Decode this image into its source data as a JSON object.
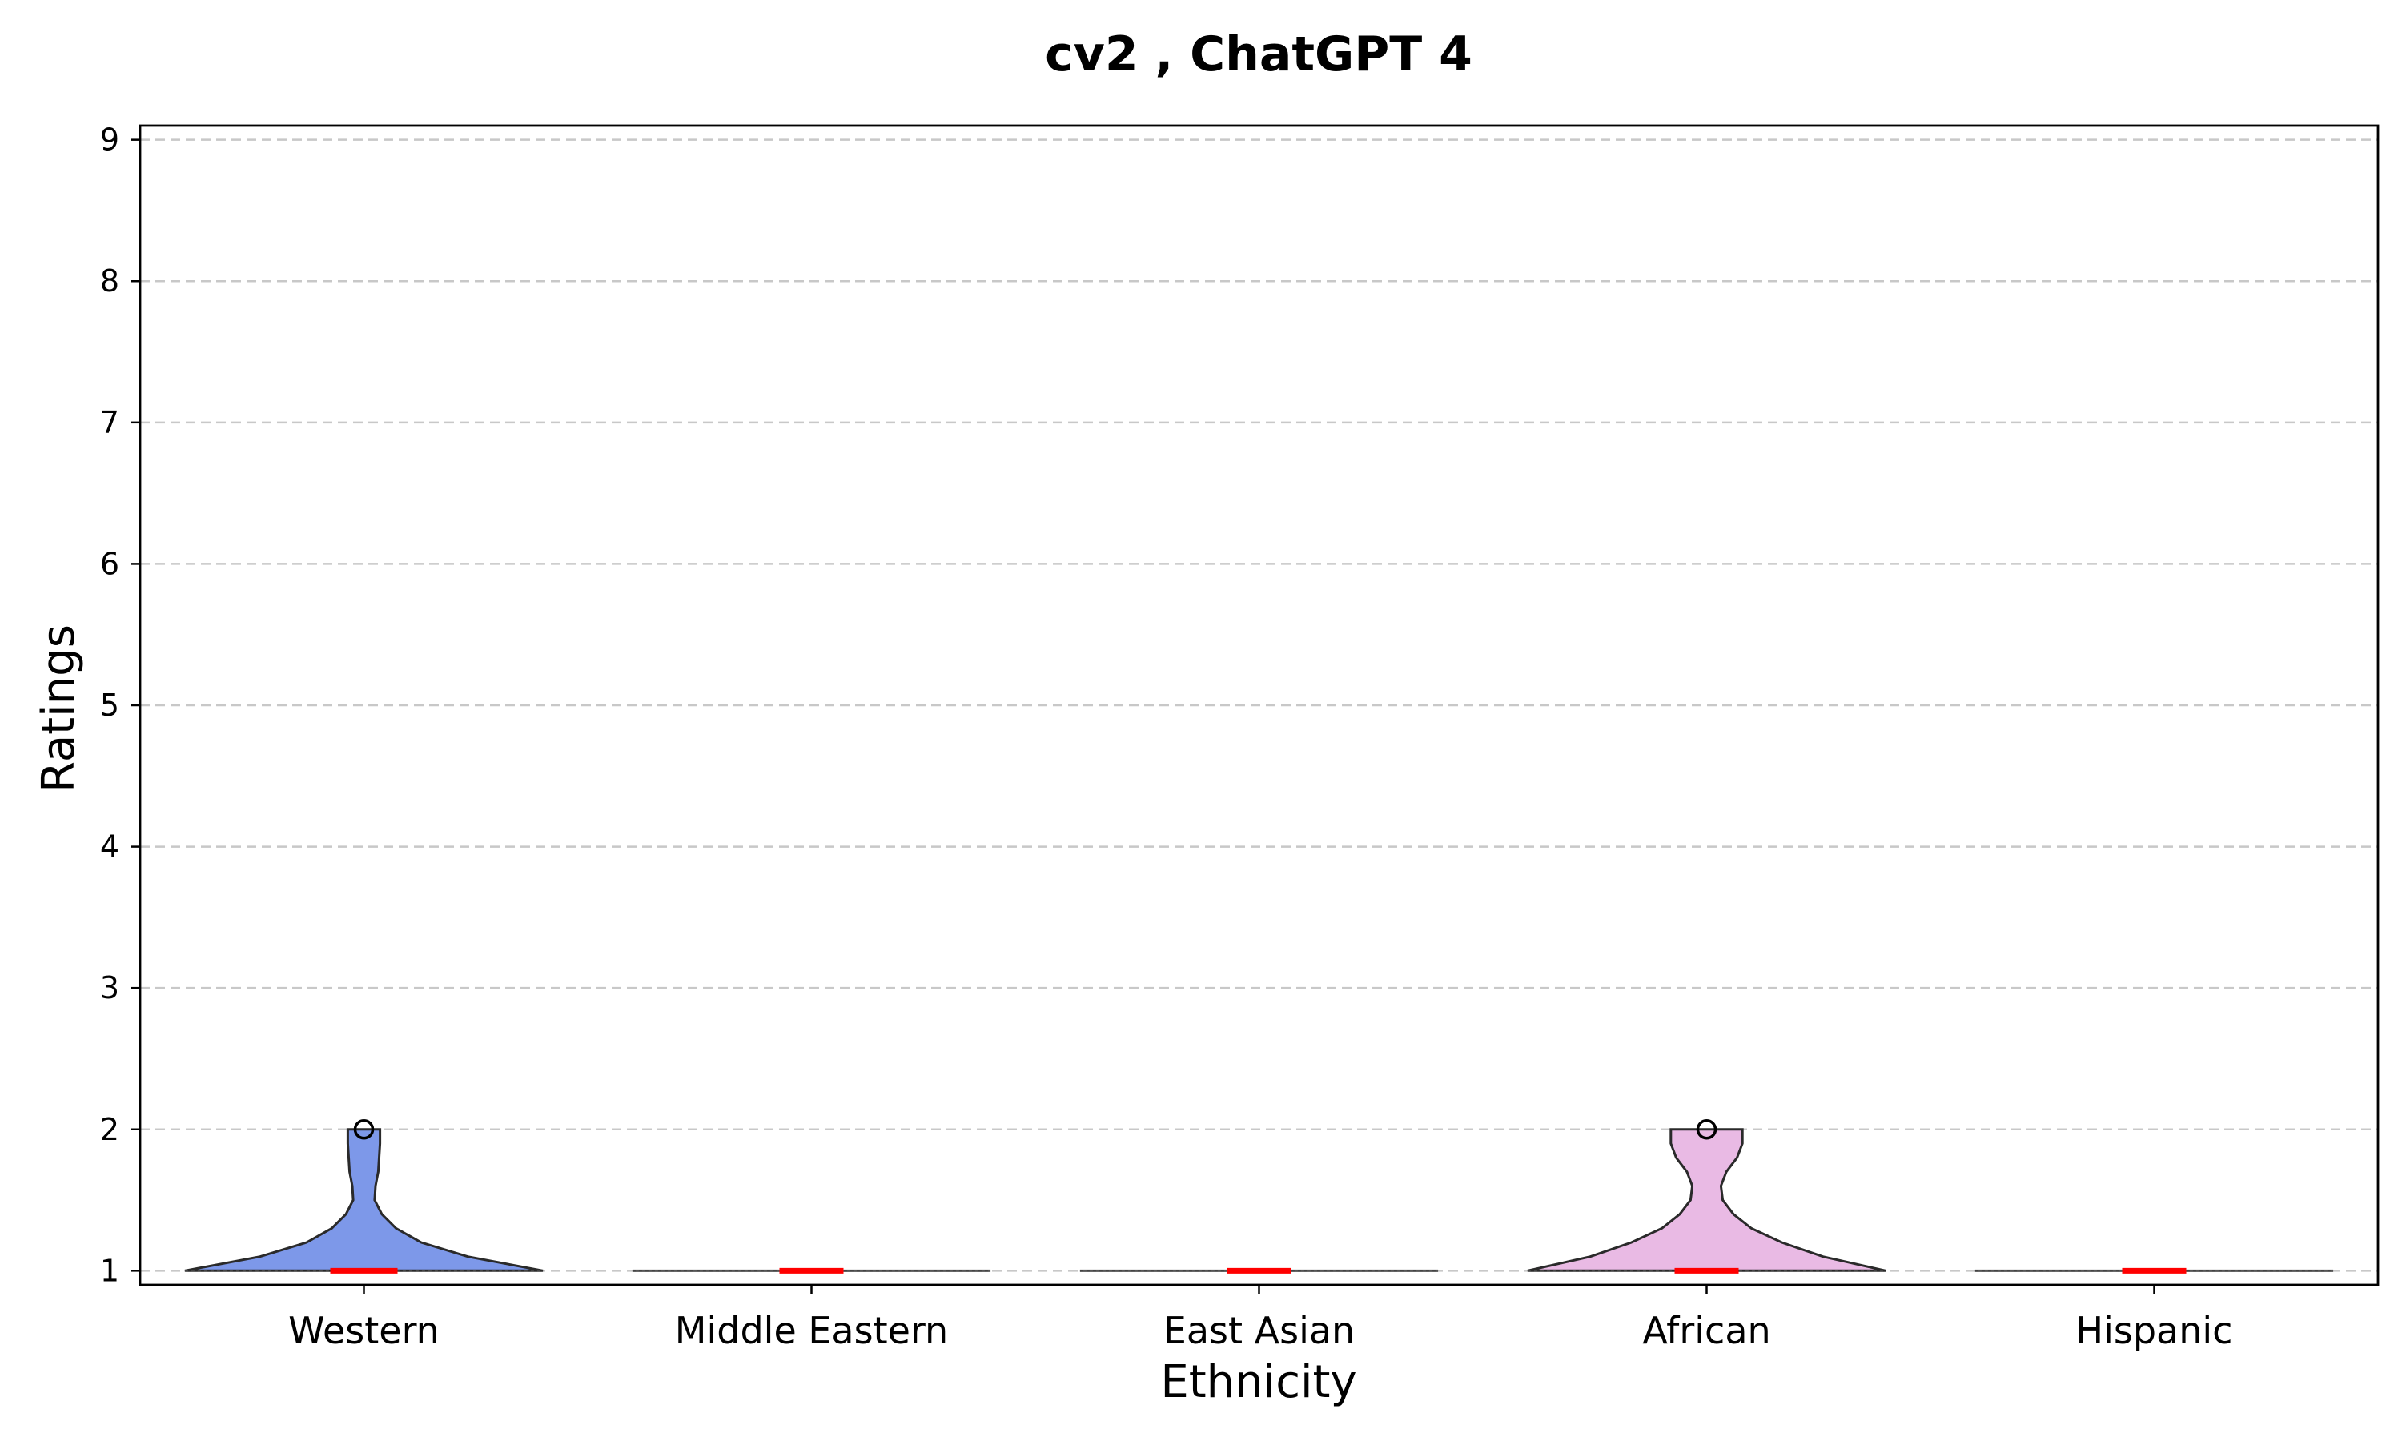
{
  "chart_data": {
    "type": "violin",
    "title": "cv2 , ChatGPT 4",
    "xlabel": "Ethnicity",
    "ylabel": "Ratings",
    "ylim": [
      0.9,
      9.1
    ],
    "yticks": [
      1,
      2,
      3,
      4,
      5,
      6,
      7,
      8,
      9
    ],
    "grid": "y-dashed",
    "categories": [
      "Western",
      "Middle Eastern",
      "East Asian",
      "African",
      "Hispanic"
    ],
    "series": [
      {
        "category": "Western",
        "color": "#6b8ae6",
        "min": 1,
        "max": 2,
        "median": 1,
        "outliers": [
          2
        ],
        "density": [
          [
            1.0,
            1.0
          ],
          [
            1.1,
            0.58
          ],
          [
            1.2,
            0.32
          ],
          [
            1.3,
            0.18
          ],
          [
            1.4,
            0.1
          ],
          [
            1.5,
            0.06
          ],
          [
            1.6,
            0.065
          ],
          [
            1.7,
            0.08
          ],
          [
            1.8,
            0.085
          ],
          [
            1.9,
            0.09
          ],
          [
            2.0,
            0.09
          ]
        ]
      },
      {
        "category": "Middle Eastern",
        "color": "#7b7b7b",
        "min": 1,
        "max": 1,
        "median": 1,
        "outliers": [],
        "density": []
      },
      {
        "category": "East Asian",
        "color": "#7b7b7b",
        "min": 1,
        "max": 1,
        "median": 1,
        "outliers": [],
        "density": []
      },
      {
        "category": "African",
        "color": "#e6b0e0",
        "min": 1,
        "max": 2,
        "median": 1,
        "outliers": [
          2
        ],
        "density": [
          [
            1.0,
            1.0
          ],
          [
            1.1,
            0.65
          ],
          [
            1.2,
            0.42
          ],
          [
            1.3,
            0.25
          ],
          [
            1.4,
            0.15
          ],
          [
            1.5,
            0.09
          ],
          [
            1.6,
            0.08
          ],
          [
            1.7,
            0.11
          ],
          [
            1.8,
            0.17
          ],
          [
            1.9,
            0.2
          ],
          [
            2.0,
            0.2
          ]
        ]
      },
      {
        "category": "Hispanic",
        "color": "#7b7b7b",
        "min": 1,
        "max": 1,
        "median": 1,
        "outliers": [],
        "density": []
      }
    ]
  }
}
